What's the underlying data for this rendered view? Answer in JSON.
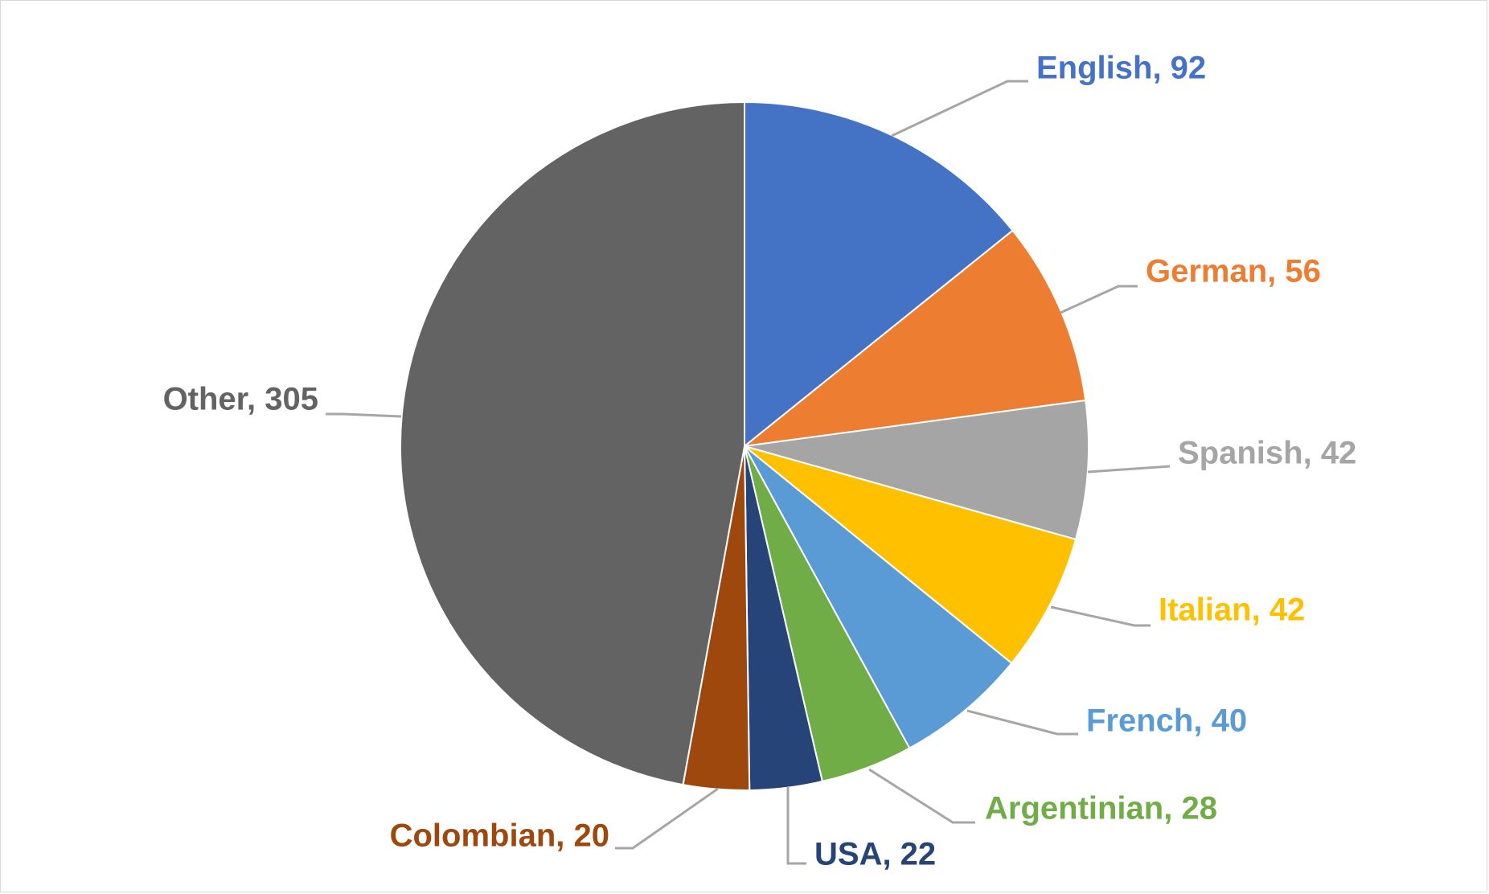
{
  "chart_data": {
    "type": "pie",
    "title": "",
    "start_angle_deg": 0,
    "direction": "clockwise",
    "legend": "none",
    "slices": [
      {
        "label": "English",
        "value": 92,
        "display": "English, 92",
        "color": "#4472C4"
      },
      {
        "label": "German",
        "value": 56,
        "display": "German, 56",
        "color": "#ED7D31"
      },
      {
        "label": "Spanish",
        "value": 42,
        "display": "Spanish, 42",
        "color": "#A5A5A5"
      },
      {
        "label": "Italian",
        "value": 42,
        "display": "Italian, 42",
        "color": "#FFC000"
      },
      {
        "label": "French",
        "value": 40,
        "display": "French, 40",
        "color": "#5B9BD5"
      },
      {
        "label": "Argentinian",
        "value": 28,
        "display": "Argentinian, 28",
        "color": "#70AD47"
      },
      {
        "label": "USA",
        "value": 22,
        "display": "USA, 22",
        "color": "#264478"
      },
      {
        "label": "Colombian",
        "value": 20,
        "display": "Colombian, 20",
        "color": "#9E480E"
      },
      {
        "label": "Other",
        "value": 305,
        "display": "Other, 305",
        "color": "#636363"
      }
    ]
  }
}
